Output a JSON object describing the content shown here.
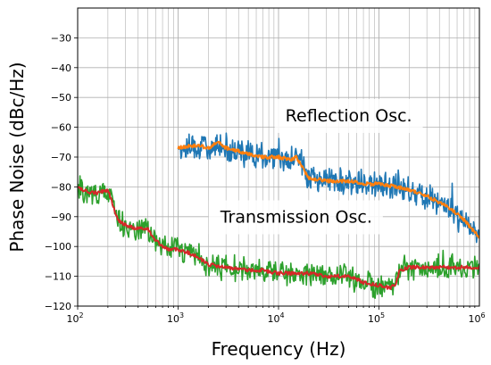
{
  "chart_data": {
    "type": "line",
    "title": "",
    "xlabel": "Frequency (Hz)",
    "ylabel": "Phase Noise (dBc/Hz)",
    "xscale": "log",
    "xlim": [
      100,
      1000000
    ],
    "ylim": [
      -120,
      -20
    ],
    "grid": true,
    "x_ticks": [
      {
        "value": 100,
        "base": "10",
        "exp": "2"
      },
      {
        "value": 1000,
        "base": "10",
        "exp": "3"
      },
      {
        "value": 10000,
        "base": "10",
        "exp": "4"
      },
      {
        "value": 100000,
        "base": "10",
        "exp": "5"
      },
      {
        "value": 1000000,
        "base": "10",
        "exp": "6"
      }
    ],
    "y_ticks": [
      -30,
      -40,
      -50,
      -60,
      -70,
      -80,
      -90,
      -100,
      -110,
      -120
    ],
    "series": [
      {
        "name": "Reflection Osc.",
        "noisy_color": "#1f77b4",
        "smooth_color": "#ff7f0e",
        "x": [
          1000,
          1500,
          2000,
          2500,
          3000,
          4000,
          5000,
          7000,
          10000,
          13000,
          15000,
          20000,
          30000,
          50000,
          70000,
          100000,
          150000,
          200000,
          300000,
          500000,
          700000,
          1000000
        ],
        "y": [
          -67,
          -66,
          -67,
          -65,
          -67,
          -68,
          -69,
          -70,
          -70,
          -71,
          -70,
          -77,
          -78,
          -78,
          -79,
          -79,
          -80,
          -81,
          -83,
          -87,
          -91,
          -97
        ]
      },
      {
        "name": "Transmission Osc.",
        "noisy_color": "#2ca02c",
        "smooth_color": "#d62728",
        "x": [
          100,
          130,
          160,
          200,
          220,
          250,
          300,
          400,
          500,
          600,
          700,
          800,
          1000,
          1500,
          2000,
          3000,
          5000,
          7000,
          10000,
          20000,
          30000,
          50000,
          70000,
          100000,
          130000,
          150000,
          160000,
          200000,
          300000,
          500000,
          1000000
        ],
        "y": [
          -80,
          -82,
          -82,
          -81,
          -85,
          -91,
          -93,
          -94,
          -94,
          -98,
          -100,
          -101,
          -101,
          -103,
          -106,
          -107,
          -108,
          -108,
          -109,
          -109,
          -110,
          -110,
          -112,
          -113,
          -114,
          -112,
          -108,
          -107,
          -107,
          -107,
          -107
        ]
      }
    ],
    "annotations": [
      {
        "text": "Reflection Osc.",
        "x": 50000,
        "y": -58
      },
      {
        "text": "Transmission Osc.",
        "x": 15000,
        "y": -92
      }
    ]
  }
}
